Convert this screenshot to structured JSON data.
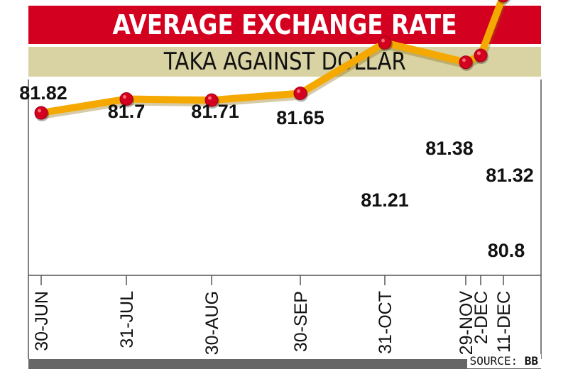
{
  "title": "AVERAGE EXCHANGE RATE",
  "subtitle": "TAKA AGAINST DOLLAR",
  "source_label": "SOURCE:",
  "source_value": "BB",
  "colors": {
    "title_bg": "#d4001f",
    "subtitle_bg": "#d9d2a2",
    "line": "#f5a800",
    "marker": "#d4001f",
    "axis": "#555555",
    "footer": "#666666"
  },
  "chart_data": {
    "type": "line",
    "categories": [
      "30-JUN",
      "31-JUL",
      "30-AUG",
      "30-SEP",
      "31-OCT",
      "29-NOV",
      "2-DEC",
      "11-DEC"
    ],
    "series": [
      {
        "values": [
          81.82,
          81.7,
          81.71,
          81.65,
          81.21,
          81.38,
          81.32,
          80.8
        ]
      }
    ],
    "data_labels": [
      "81.82",
      "81.7",
      "81.71",
      "81.65",
      "81.21",
      "81.38",
      "81.32",
      "80.8"
    ],
    "title": "AVERAGE EXCHANGE RATE",
    "subtitle": "TAKA AGAINST DOLLAR",
    "xlabel": "",
    "ylabel": "",
    "grid": false
  }
}
